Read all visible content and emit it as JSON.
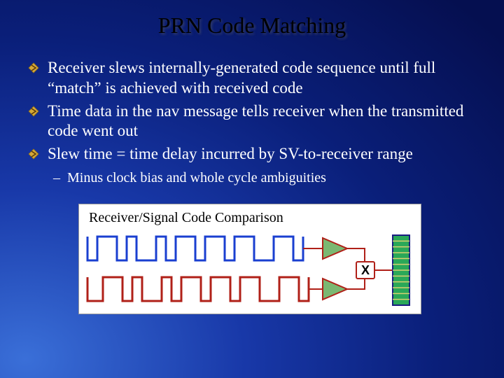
{
  "title": "PRN Code Matching",
  "bullets": [
    "Receiver slews internally-generated code sequence until full “match” is achieved with received code",
    "Time data in the nav message tells receiver when the transmitted code went out",
    "Slew time = time delay incurred by SV-to-receiver range"
  ],
  "sub_bullet": "Minus clock bias and whole cycle ambiguities",
  "diagram": {
    "title": "Receiver/Signal Code Comparison",
    "colors": {
      "wave_top": "#1a3fd0",
      "wave_bottom": "#b02018",
      "triangle": "#b02018",
      "triangle_fill": "#7ab872",
      "x_box_border": "#b02018",
      "x_text": "#000000",
      "bar_fill": "#2aa858",
      "bar_border": "#1a1c80",
      "bar_divider": "#d8d070"
    },
    "x_label": "X"
  }
}
